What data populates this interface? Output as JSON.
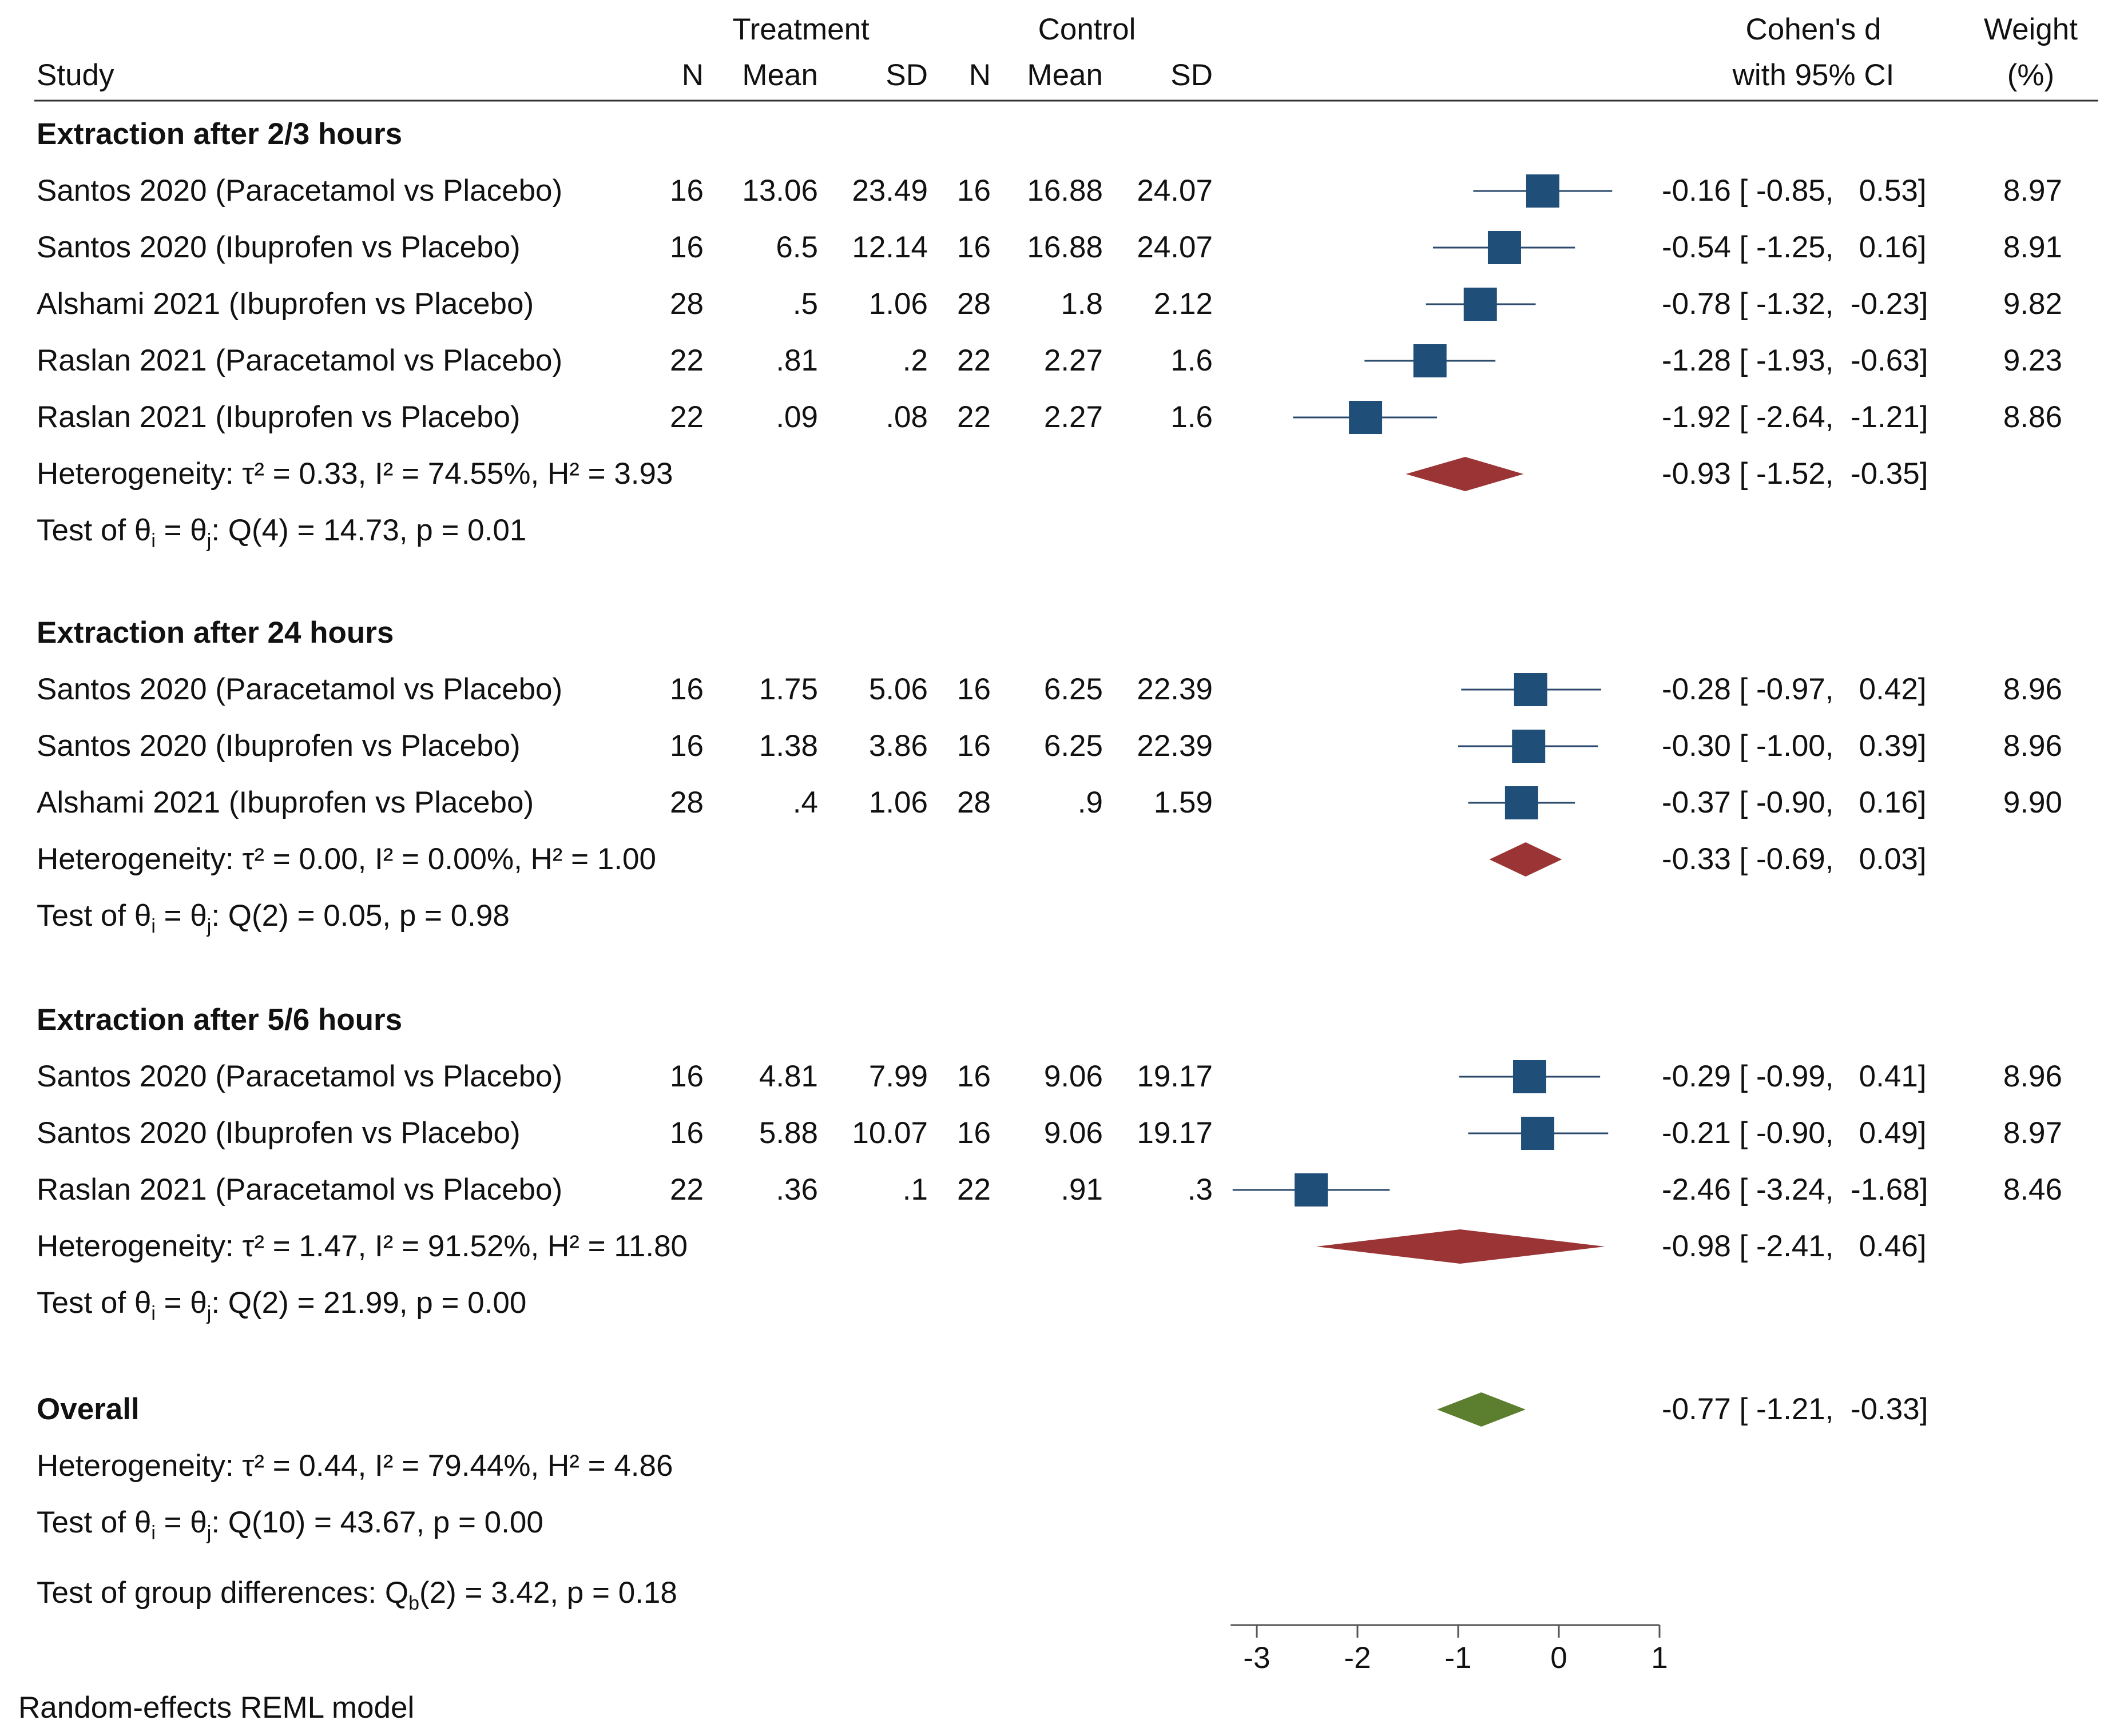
{
  "header": {
    "study": "Study",
    "treatment": "Treatment",
    "control": "Control",
    "n": "N",
    "mean": "Mean",
    "sd": "SD",
    "effect_line1": "Cohen's d",
    "effect_line2": "with 95% CI",
    "weight_line1": "Weight",
    "weight_line2": "(%)"
  },
  "groups": [
    {
      "title": "Extraction after 2/3 hours",
      "studies": [
        {
          "name": "Santos 2020 (Paracetamol vs Placebo)",
          "tn": "16",
          "tmean": "13.06",
          "tsd": "23.49",
          "cn": "16",
          "cmean": "16.88",
          "csd": "24.07",
          "d": -0.16,
          "lo": -0.85,
          "hi": 0.53,
          "ci": "-0.16 [ -0.85,   0.53]",
          "weight": "8.97"
        },
        {
          "name": "Santos 2020 (Ibuprofen vs Placebo)",
          "tn": "16",
          "tmean": "6.5",
          "tsd": "12.14",
          "cn": "16",
          "cmean": "16.88",
          "csd": "24.07",
          "d": -0.54,
          "lo": -1.25,
          "hi": 0.16,
          "ci": "-0.54 [ -1.25,   0.16]",
          "weight": "8.91"
        },
        {
          "name": "Alshami 2021 (Ibuprofen vs Placebo)",
          "tn": "28",
          "tmean": ".5",
          "tsd": "1.06",
          "cn": "28",
          "cmean": "1.8",
          "csd": "2.12",
          "d": -0.78,
          "lo": -1.32,
          "hi": -0.23,
          "ci": "-0.78 [ -1.32,  -0.23]",
          "weight": "9.82"
        },
        {
          "name": "Raslan 2021 (Paracetamol vs Placebo)",
          "tn": "22",
          "tmean": ".81",
          "tsd": ".2",
          "cn": "22",
          "cmean": "2.27",
          "csd": "1.6",
          "d": -1.28,
          "lo": -1.93,
          "hi": -0.63,
          "ci": "-1.28 [ -1.93,  -0.63]",
          "weight": "9.23"
        },
        {
          "name": "Raslan 2021 (Ibuprofen vs Placebo)",
          "tn": "22",
          "tmean": ".09",
          "tsd": ".08",
          "cn": "22",
          "cmean": "2.27",
          "csd": "1.6",
          "d": -1.92,
          "lo": -2.64,
          "hi": -1.21,
          "ci": "-1.92 [ -2.64,  -1.21]",
          "weight": "8.86"
        }
      ],
      "heterogeneity": "Heterogeneity: τ² = 0.33, I² = 74.55%, H² = 3.93",
      "test_prefix": "Test of θ",
      "test_sub_i": "i",
      "test_mid": " = θ",
      "test_sub_j": "j",
      "test_suffix": ": Q(4) = 14.73, p = 0.01",
      "summary": {
        "d": -0.93,
        "lo": -1.52,
        "hi": -0.35,
        "ci": "-0.93 [ -1.52,  -0.35]"
      }
    },
    {
      "title": "Extraction after 24 hours",
      "studies": [
        {
          "name": "Santos 2020 (Paracetamol vs Placebo)",
          "tn": "16",
          "tmean": "1.75",
          "tsd": "5.06",
          "cn": "16",
          "cmean": "6.25",
          "csd": "22.39",
          "d": -0.28,
          "lo": -0.97,
          "hi": 0.42,
          "ci": "-0.28 [ -0.97,   0.42]",
          "weight": "8.96"
        },
        {
          "name": "Santos 2020 (Ibuprofen vs Placebo)",
          "tn": "16",
          "tmean": "1.38",
          "tsd": "3.86",
          "cn": "16",
          "cmean": "6.25",
          "csd": "22.39",
          "d": -0.3,
          "lo": -1.0,
          "hi": 0.39,
          "ci": "-0.30 [ -1.00,   0.39]",
          "weight": "8.96"
        },
        {
          "name": "Alshami 2021 (Ibuprofen vs Placebo)",
          "tn": "28",
          "tmean": ".4",
          "tsd": "1.06",
          "cn": "28",
          "cmean": ".9",
          "csd": "1.59",
          "d": -0.37,
          "lo": -0.9,
          "hi": 0.16,
          "ci": "-0.37 [ -0.90,   0.16]",
          "weight": "9.90"
        }
      ],
      "heterogeneity": "Heterogeneity: τ² = 0.00, I² = 0.00%, H² = 1.00",
      "test_prefix": "Test of θ",
      "test_sub_i": "i",
      "test_mid": " = θ",
      "test_sub_j": "j",
      "test_suffix": ": Q(2) = 0.05, p = 0.98",
      "summary": {
        "d": -0.33,
        "lo": -0.69,
        "hi": 0.03,
        "ci": "-0.33 [ -0.69,   0.03]"
      }
    },
    {
      "title": "Extraction after 5/6 hours",
      "studies": [
        {
          "name": "Santos 2020 (Paracetamol vs Placebo)",
          "tn": "16",
          "tmean": "4.81",
          "tsd": "7.99",
          "cn": "16",
          "cmean": "9.06",
          "csd": "19.17",
          "d": -0.29,
          "lo": -0.99,
          "hi": 0.41,
          "ci": "-0.29 [ -0.99,   0.41]",
          "weight": "8.96"
        },
        {
          "name": "Santos 2020 (Ibuprofen vs Placebo)",
          "tn": "16",
          "tmean": "5.88",
          "tsd": "10.07",
          "cn": "16",
          "cmean": "9.06",
          "csd": "19.17",
          "d": -0.21,
          "lo": -0.9,
          "hi": 0.49,
          "ci": "-0.21 [ -0.90,   0.49]",
          "weight": "8.97"
        },
        {
          "name": "Raslan 2021 (Paracetamol vs Placebo)",
          "tn": "22",
          "tmean": ".36",
          "tsd": ".1",
          "cn": "22",
          "cmean": ".91",
          "csd": ".3",
          "d": -2.46,
          "lo": -3.24,
          "hi": -1.68,
          "ci": "-2.46 [ -3.24,  -1.68]",
          "weight": "8.46"
        }
      ],
      "heterogeneity": "Heterogeneity: τ² = 1.47, I² = 91.52%, H² = 11.80",
      "test_prefix": "Test of θ",
      "test_sub_i": "i",
      "test_mid": " = θ",
      "test_sub_j": "j",
      "test_suffix": ": Q(2) = 21.99, p = 0.00",
      "summary": {
        "d": -0.98,
        "lo": -2.41,
        "hi": 0.46,
        "ci": "-0.98 [ -2.41,   0.46]"
      }
    }
  ],
  "overall": {
    "title": "Overall",
    "heterogeneity": "Heterogeneity: τ² = 0.44, I² = 79.44%, H² = 4.86",
    "test_prefix": "Test of θ",
    "test_sub_i": "i",
    "test_mid": " = θ",
    "test_sub_j": "j",
    "test_suffix": ": Q(10) = 43.67, p = 0.00",
    "group_test_prefix": "Test of group differences: Q",
    "group_test_sub": "b",
    "group_test_suffix": "(2) = 3.42, p = 0.18",
    "summary": {
      "d": -0.77,
      "lo": -1.21,
      "hi": -0.33,
      "ci": "-0.77 [ -1.21,  -0.33]"
    }
  },
  "footer": "Random-effects REML model",
  "colors": {
    "study_marker": "#1f4e79",
    "group_diamond": "#9b3535",
    "overall_diamond": "#5b7f2e",
    "line": "#2b4a6b",
    "axis": "#555555"
  },
  "chart_data": {
    "type": "forest",
    "title": "",
    "xlabel": "Cohen's d with 95% CI",
    "xlim": [
      -3.3,
      1
    ],
    "xticks": [
      -3,
      -2,
      -1,
      0,
      1
    ],
    "xtick_labels": [
      "-3",
      "-2",
      "-1",
      "0",
      "1"
    ],
    "series": [
      {
        "name": "Extraction after 2/3 hours",
        "labels": [
          "Santos 2020 (Paracetamol vs Placebo)",
          "Santos 2020 (Ibuprofen vs Placebo)",
          "Alshami 2021 (Ibuprofen vs Placebo)",
          "Raslan 2021 (Paracetamol vs Placebo)",
          "Raslan 2021 (Ibuprofen vs Placebo)"
        ],
        "d": [
          -0.16,
          -0.54,
          -0.78,
          -1.28,
          -1.92
        ],
        "lo": [
          -0.85,
          -1.25,
          -1.32,
          -1.93,
          -2.64
        ],
        "hi": [
          0.53,
          0.16,
          -0.23,
          -0.63,
          -1.21
        ],
        "weights": [
          8.97,
          8.91,
          9.82,
          9.23,
          8.86
        ],
        "summary": [
          -0.93,
          -1.52,
          -0.35
        ]
      },
      {
        "name": "Extraction after 24 hours",
        "labels": [
          "Santos 2020 (Paracetamol vs Placebo)",
          "Santos 2020 (Ibuprofen vs Placebo)",
          "Alshami 2021 (Ibuprofen vs Placebo)"
        ],
        "d": [
          -0.28,
          -0.3,
          -0.37
        ],
        "lo": [
          -0.97,
          -1.0,
          -0.9
        ],
        "hi": [
          0.42,
          0.39,
          0.16
        ],
        "weights": [
          8.96,
          8.96,
          9.9
        ],
        "summary": [
          -0.33,
          -0.69,
          0.03
        ]
      },
      {
        "name": "Extraction after 5/6 hours",
        "labels": [
          "Santos 2020 (Paracetamol vs Placebo)",
          "Santos 2020 (Ibuprofen vs Placebo)",
          "Raslan 2021 (Paracetamol vs Placebo)"
        ],
        "d": [
          -0.29,
          -0.21,
          -2.46
        ],
        "lo": [
          -0.99,
          -0.9,
          -3.24
        ],
        "hi": [
          0.41,
          0.49,
          -1.68
        ],
        "weights": [
          8.96,
          8.97,
          8.46
        ],
        "summary": [
          -0.98,
          -2.41,
          0.46
        ]
      }
    ],
    "overall": {
      "d": -0.77,
      "lo": -1.21,
      "hi": -0.33
    }
  }
}
